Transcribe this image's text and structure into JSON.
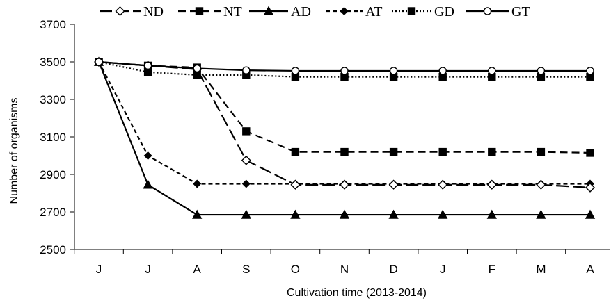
{
  "chart_data": {
    "type": "line",
    "xlabel": "Cultivation time (2013-2014)",
    "ylabel": "Number of organisms",
    "categories": [
      "J",
      "J",
      "A",
      "S",
      "O",
      "N",
      "D",
      "J",
      "F",
      "M",
      "A"
    ],
    "yticks": [
      "2500",
      "2700",
      "2900",
      "3100",
      "3300",
      "3500",
      "3700"
    ],
    "ylim": [
      2500,
      3700
    ],
    "grid": false,
    "legend_position": "top",
    "series": [
      {
        "name": "ND",
        "dash": "long-dash",
        "marker": "diamond-open",
        "values": [
          3500,
          3480,
          3460,
          2975,
          2845,
          2845,
          2845,
          2845,
          2845,
          2845,
          2830
        ]
      },
      {
        "name": "NT",
        "dash": "dash",
        "marker": "square",
        "values": [
          3500,
          3480,
          3470,
          3130,
          3020,
          3020,
          3020,
          3020,
          3020,
          3020,
          3015
        ]
      },
      {
        "name": "AD",
        "dash": "solid",
        "marker": "triangle",
        "values": [
          3500,
          2845,
          2685,
          2685,
          2685,
          2685,
          2685,
          2685,
          2685,
          2685,
          2685
        ]
      },
      {
        "name": "AT",
        "dash": "short-dash",
        "marker": "diamond",
        "values": [
          3500,
          3000,
          2850,
          2850,
          2850,
          2850,
          2850,
          2850,
          2850,
          2850,
          2850
        ]
      },
      {
        "name": "GD",
        "dash": "dotted",
        "marker": "square",
        "values": [
          3500,
          3445,
          3430,
          3430,
          3420,
          3420,
          3420,
          3420,
          3420,
          3420,
          3420
        ]
      },
      {
        "name": "GT",
        "dash": "solid",
        "marker": "circle-open",
        "values": [
          3500,
          3480,
          3465,
          3455,
          3452,
          3452,
          3452,
          3452,
          3452,
          3452,
          3452
        ]
      }
    ]
  }
}
